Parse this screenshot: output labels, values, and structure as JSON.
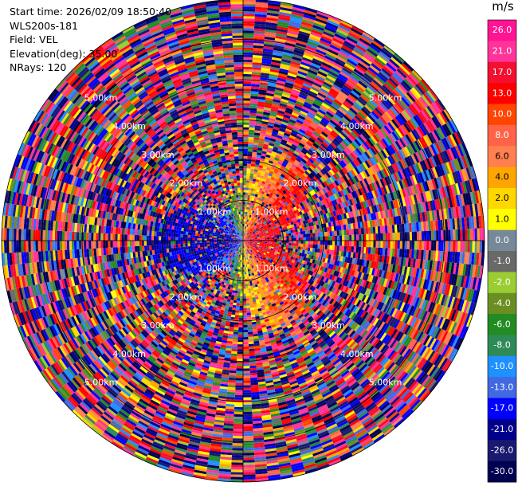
{
  "info": {
    "start_time": "Start time: 2026/02/09 18:50:40",
    "instrument": "WLS200s-181",
    "field": "Field: VEL",
    "elevation": "Elevation(deg): 35.00",
    "nrays": "NRays: 120"
  },
  "colorbar": {
    "unit": "m/s",
    "ticks": [
      "26.0",
      "21.0",
      "17.0",
      "13.0",
      "10.0",
      "8.0",
      "6.0",
      "4.0",
      "2.0",
      "1.0",
      "0.0",
      "-1.0",
      "-2.0",
      "-4.0",
      "-6.0",
      "-8.0",
      "-10.0",
      "-13.0",
      "-17.0",
      "-21.0",
      "-26.0",
      "-30.0"
    ],
    "colors": [
      "#ff1493",
      "#ff3399",
      "#f20f30",
      "#ff0000",
      "#ff4500",
      "#ff6347",
      "#ff7f50",
      "#ffa500",
      "#ffd700",
      "#ffff00",
      "#778899",
      "#696969",
      "#9acd32",
      "#6b8e23",
      "#228b22",
      "#2e8b57",
      "#1e90ff",
      "#4169e1",
      "#0000ff",
      "#00008b",
      "#191970",
      "#000050"
    ]
  },
  "chart_data": {
    "type": "heatmap",
    "projection": "polar-ppi",
    "field": "VEL",
    "units": "m/s",
    "elevation_deg": 35.0,
    "n_rays": 120,
    "max_range_km": 6.0,
    "range_ring_labels": [
      "1.00km",
      "2.00km",
      "3.00km",
      "4.00km",
      "5.00km"
    ],
    "value_range": [
      -30.0,
      26.0
    ]
  }
}
